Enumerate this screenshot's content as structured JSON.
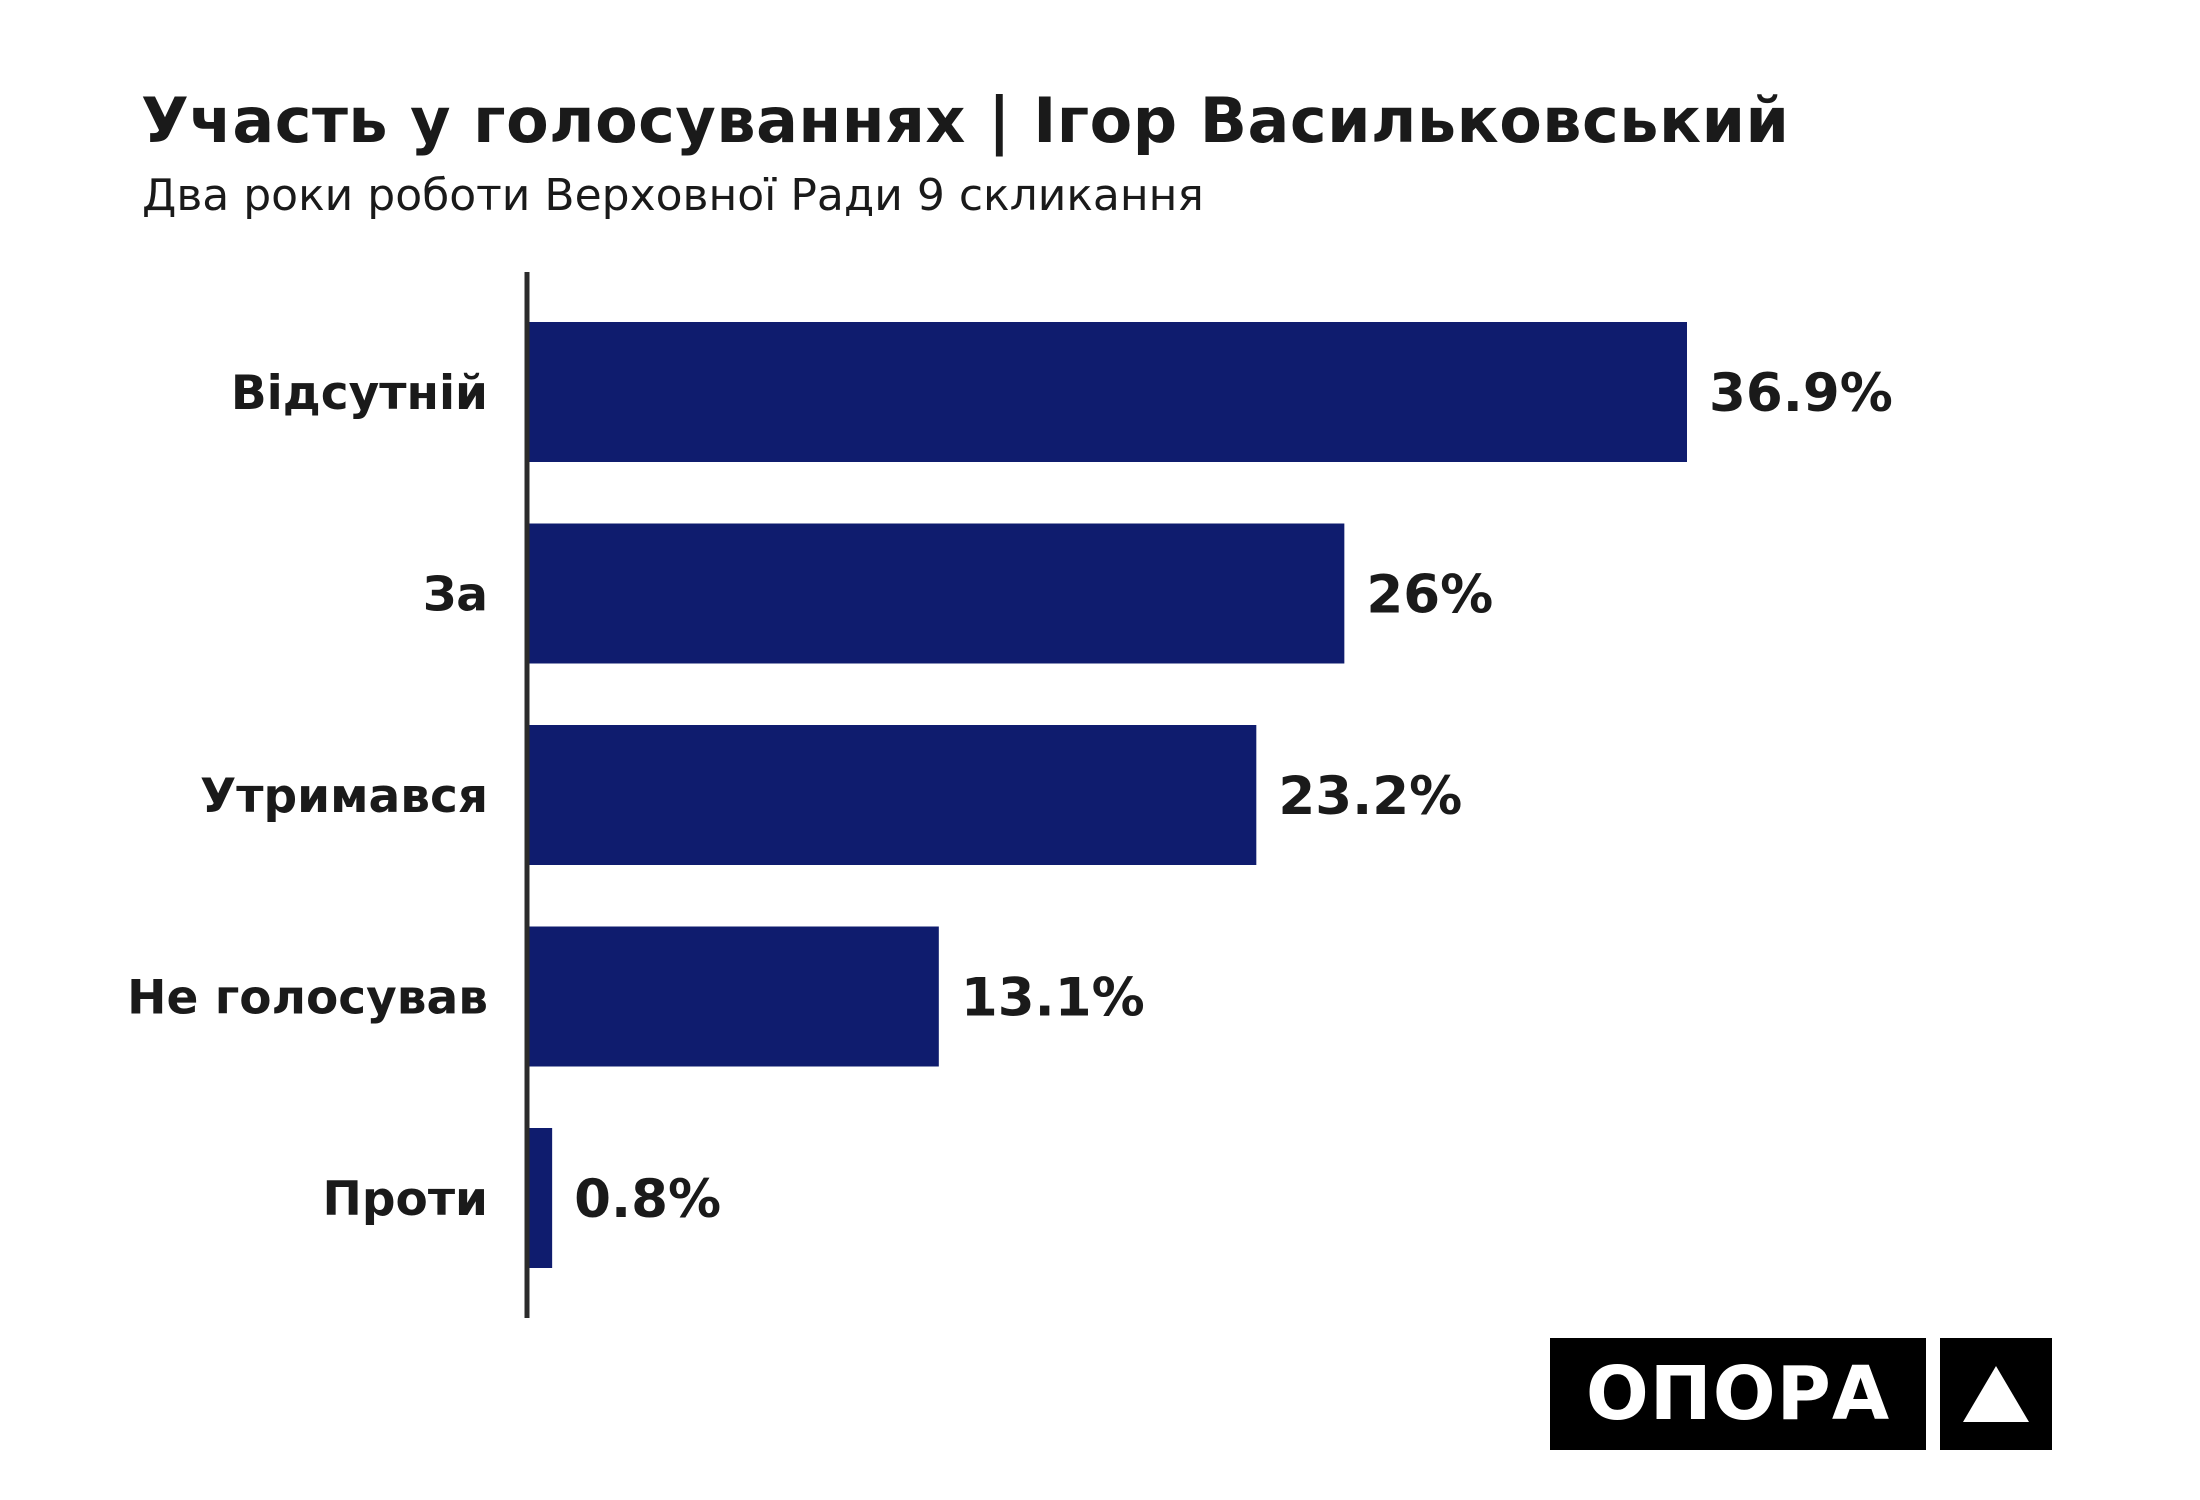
{
  "header": {
    "title": "Участь у голосуваннях | Ігор Васильковський",
    "subtitle": "Два роки роботи Верховної Ради 9 скликання"
  },
  "chart_data": {
    "type": "bar",
    "orientation": "horizontal",
    "title": "Участь у голосуваннях | Ігор Васильковський",
    "subtitle": "Два роки роботи Верховної Ради 9 скликання",
    "categories": [
      "Відсутній",
      "За",
      "Утримався",
      "Не голосував",
      "Проти"
    ],
    "values": [
      36.9,
      26,
      23.2,
      13.1,
      0.8
    ],
    "value_labels": [
      "36.9%",
      "26%",
      "23.2%",
      "13.1%",
      "0.8%"
    ],
    "unit": "%",
    "xlim": [
      0,
      36.9
    ],
    "grid": false,
    "legend": "none",
    "colors": {
      "bar": "#0f1c6e",
      "axis": "#2b2b2b",
      "text": "#1a1a1a"
    }
  },
  "logo": {
    "word": "ОПОРА",
    "mark_icon": "triangle-icon",
    "background": "#000000",
    "foreground": "#ffffff"
  }
}
